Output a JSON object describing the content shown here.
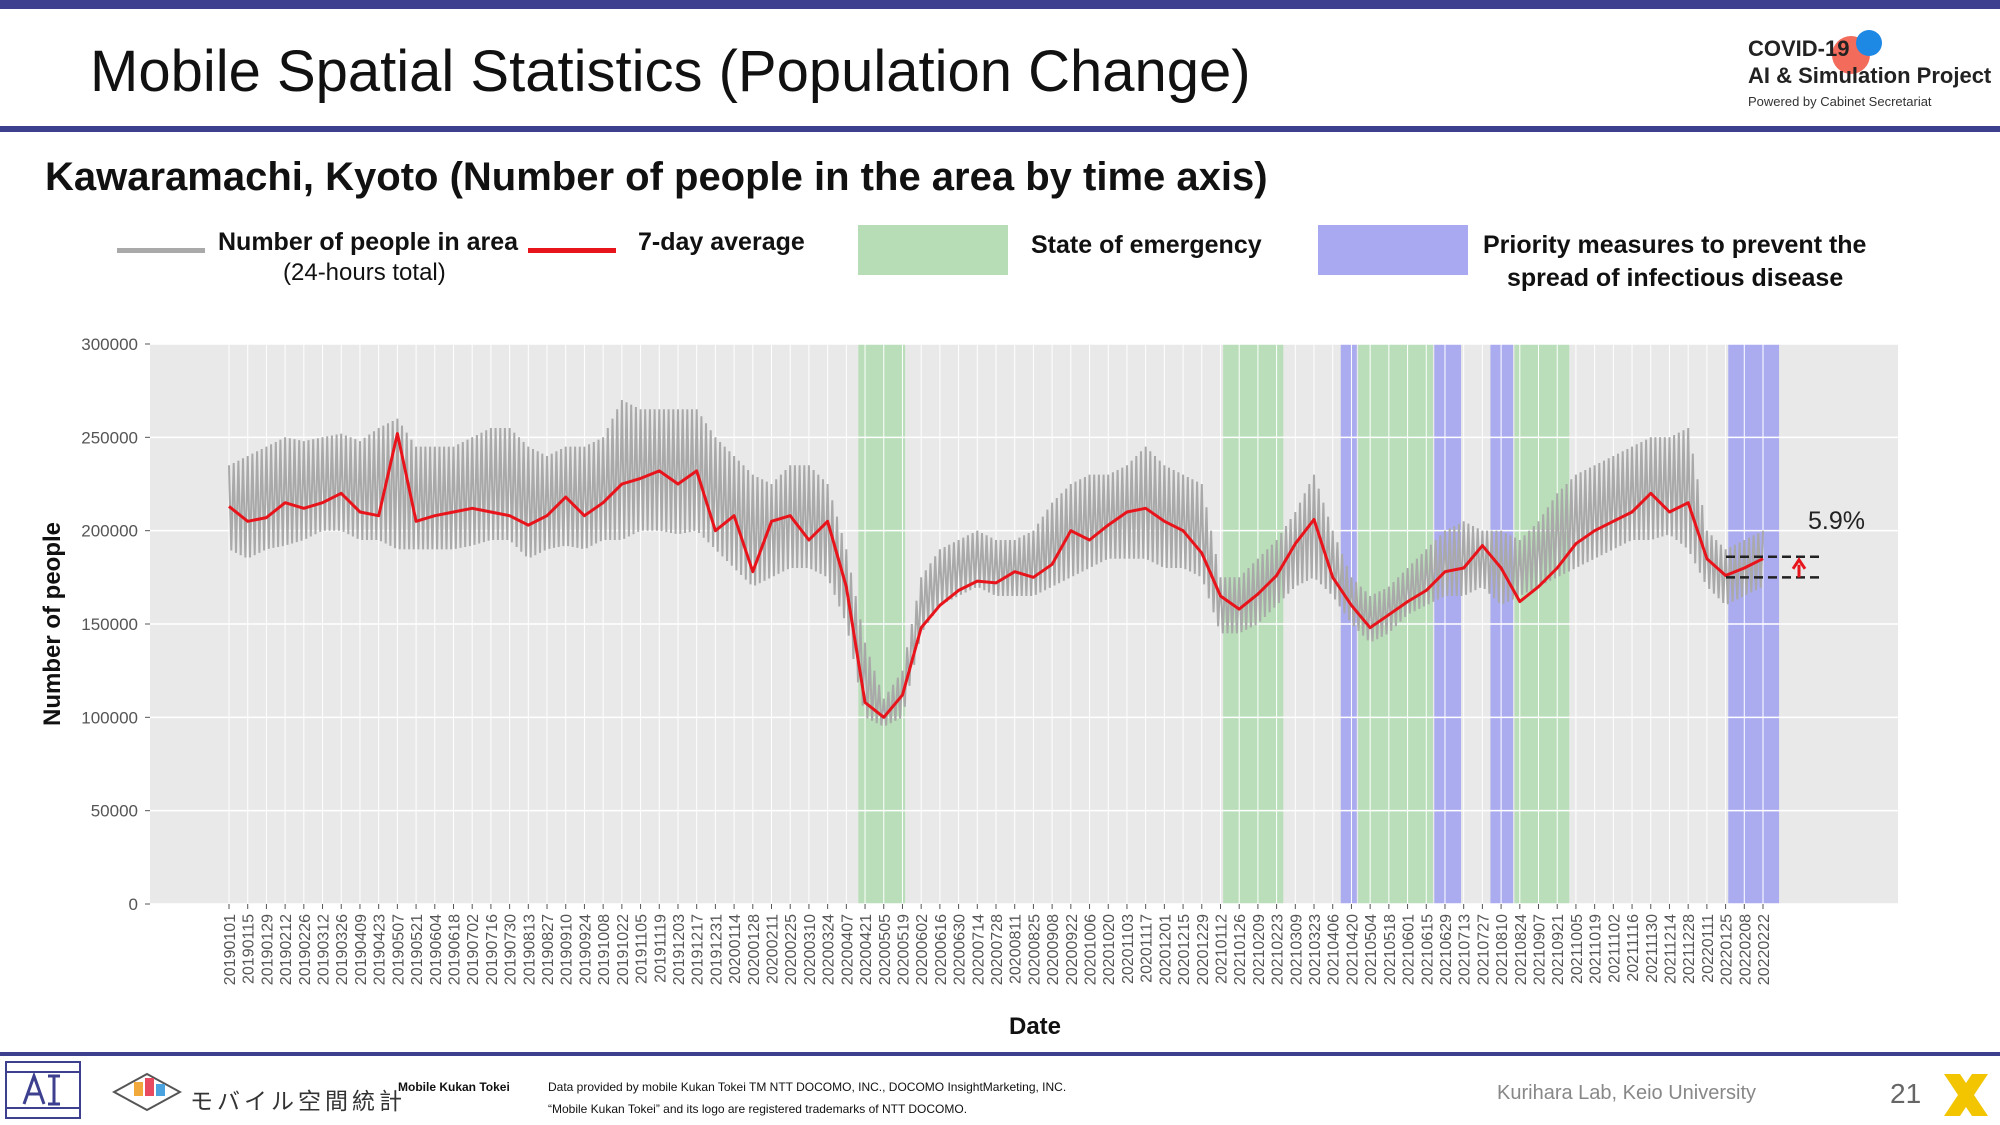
{
  "header": {
    "title": "Mobile Spatial Statistics (Population Change)",
    "logo_line1": "COVID-19",
    "logo_line2": "AI & Simulation Project",
    "logo_line3": "Powered by Cabinet Secretariat"
  },
  "subtitle": "Kawaramachi, Kyoto (Number of people in the area by time axis)",
  "legend": {
    "people": "Number of people in area",
    "people_sub": "(24-hours total)",
    "avg": "7-day average",
    "emergency": "State of emergency",
    "priority_line1": "Priority measures to prevent the",
    "priority_line2": "spread of infectious disease"
  },
  "colors": {
    "daily": "#a9a9a9",
    "average": "#e8141b",
    "emergency": "#b6ddb6",
    "priority": "#a8a9f0",
    "plot_bg": "#e9e9e9",
    "accent": "#3d3f8f"
  },
  "chart_data": {
    "type": "line",
    "xlabel": "Date",
    "ylabel": "Number of people",
    "ylim": [
      0,
      300000
    ],
    "yticks": [
      0,
      50000,
      100000,
      150000,
      200000,
      250000,
      300000
    ],
    "ytick_labels": [
      "0",
      "50000",
      "100000",
      "150000",
      "200000",
      "250000",
      "300000"
    ],
    "xtick_labels": [
      "20190101",
      "20190115",
      "20190129",
      "20190212",
      "20190226",
      "20190312",
      "20190326",
      "20190409",
      "20190423",
      "20190507",
      "20190521",
      "20190604",
      "20190618",
      "20190702",
      "20190716",
      "20190730",
      "20190813",
      "20190827",
      "20190910",
      "20190924",
      "20191008",
      "20191022",
      "20191105",
      "20191119",
      "20191203",
      "20191217",
      "20191231",
      "20200114",
      "20200128",
      "20200211",
      "20200225",
      "20200310",
      "20200324",
      "20200407",
      "20200421",
      "20200505",
      "20200519",
      "20200602",
      "20200616",
      "20200630",
      "20200714",
      "20200728",
      "20200811",
      "20200825",
      "20200908",
      "20200922",
      "20201006",
      "20201020",
      "20201103",
      "20201117",
      "20201201",
      "20201215",
      "20201229",
      "20210112",
      "20210126",
      "20210209",
      "20210223",
      "20210309",
      "20210323",
      "20210406",
      "20210420",
      "20210504",
      "20210518",
      "20210601",
      "20210615",
      "20210629",
      "20210713",
      "20210727",
      "20210810",
      "20210824",
      "20210907",
      "20210921",
      "20211005",
      "20211019",
      "20211102",
      "20211116",
      "20211130",
      "20211214",
      "20211228",
      "20220111",
      "20220125",
      "20220208",
      "20220222"
    ],
    "series": [
      {
        "name": "Number of people in area",
        "x": [
          "20190101",
          "20190115",
          "20190129",
          "20190212",
          "20190226",
          "20190312",
          "20190326",
          "20190409",
          "20190423",
          "20190507",
          "20190521",
          "20190604",
          "20190618",
          "20190702",
          "20190716",
          "20190730",
          "20190813",
          "20190827",
          "20190910",
          "20190924",
          "20191008",
          "20191022",
          "20191105",
          "20191119",
          "20191203",
          "20191217",
          "20191231",
          "20200114",
          "20200128",
          "20200211",
          "20200225",
          "20200310",
          "20200324",
          "20200407",
          "20200421",
          "20200505",
          "20200519",
          "20200602",
          "20200616",
          "20200630",
          "20200714",
          "20200728",
          "20200811",
          "20200825",
          "20200908",
          "20200922",
          "20201006",
          "20201020",
          "20201103",
          "20201117",
          "20201201",
          "20201215",
          "20201229",
          "20210112",
          "20210126",
          "20210209",
          "20210223",
          "20210309",
          "20210323",
          "20210406",
          "20210420",
          "20210504",
          "20210518",
          "20210601",
          "20210615",
          "20210629",
          "20210713",
          "20210727",
          "20210810",
          "20210824",
          "20210907",
          "20210921",
          "20211005",
          "20211019",
          "20211102",
          "20211116",
          "20211130",
          "20211214",
          "20211228",
          "20220111",
          "20220125",
          "20220208",
          "20220222"
        ],
        "y_high": [
          235000,
          240000,
          245000,
          250000,
          248000,
          250000,
          252000,
          248000,
          255000,
          260000,
          245000,
          245000,
          245000,
          250000,
          255000,
          255000,
          245000,
          240000,
          245000,
          245000,
          250000,
          270000,
          265000,
          265000,
          265000,
          265000,
          250000,
          240000,
          230000,
          225000,
          235000,
          235000,
          225000,
          190000,
          140000,
          110000,
          125000,
          175000,
          190000,
          195000,
          200000,
          195000,
          195000,
          200000,
          215000,
          225000,
          230000,
          230000,
          235000,
          245000,
          235000,
          230000,
          225000,
          175000,
          175000,
          185000,
          195000,
          210000,
          230000,
          200000,
          175000,
          165000,
          170000,
          180000,
          190000,
          200000,
          205000,
          200000,
          200000,
          195000,
          205000,
          220000,
          230000,
          235000,
          240000,
          245000,
          250000,
          250000,
          255000,
          200000,
          190000,
          195000,
          200000
        ],
        "y_low": [
          190000,
          185000,
          190000,
          192000,
          195000,
          200000,
          200000,
          195000,
          195000,
          190000,
          190000,
          190000,
          190000,
          192000,
          195000,
          195000,
          185000,
          190000,
          192000,
          190000,
          195000,
          195000,
          200000,
          200000,
          198000,
          200000,
          190000,
          180000,
          170000,
          175000,
          180000,
          180000,
          175000,
          150000,
          100000,
          95000,
          100000,
          145000,
          160000,
          165000,
          170000,
          165000,
          165000,
          165000,
          170000,
          175000,
          180000,
          185000,
          185000,
          185000,
          180000,
          180000,
          175000,
          145000,
          145000,
          150000,
          160000,
          170000,
          175000,
          165000,
          150000,
          140000,
          145000,
          155000,
          160000,
          165000,
          165000,
          170000,
          160000,
          165000,
          170000,
          175000,
          180000,
          185000,
          190000,
          195000,
          195000,
          198000,
          190000,
          170000,
          160000,
          165000,
          170000
        ]
      },
      {
        "name": "7-day average",
        "x": [
          "20190101",
          "20190115",
          "20190129",
          "20190212",
          "20190226",
          "20190312",
          "20190326",
          "20190409",
          "20190423",
          "20190507",
          "20190521",
          "20190604",
          "20190618",
          "20190702",
          "20190716",
          "20190730",
          "20190813",
          "20190827",
          "20190910",
          "20190924",
          "20191008",
          "20191022",
          "20191105",
          "20191119",
          "20191203",
          "20191217",
          "20191231",
          "20200114",
          "20200128",
          "20200211",
          "20200225",
          "20200310",
          "20200324",
          "20200407",
          "20200421",
          "20200505",
          "20200519",
          "20200602",
          "20200616",
          "20200630",
          "20200714",
          "20200728",
          "20200811",
          "20200825",
          "20200908",
          "20200922",
          "20201006",
          "20201020",
          "20201103",
          "20201117",
          "20201201",
          "20201215",
          "20201229",
          "20210112",
          "20210126",
          "20210209",
          "20210223",
          "20210309",
          "20210323",
          "20210406",
          "20210420",
          "20210504",
          "20210518",
          "20210601",
          "20210615",
          "20210629",
          "20210713",
          "20210727",
          "20210810",
          "20210824",
          "20210907",
          "20210921",
          "20211005",
          "20211019",
          "20211102",
          "20211116",
          "20211130",
          "20211214",
          "20211228",
          "20220111",
          "20220125",
          "20220208",
          "20220222"
        ],
        "y": [
          213000,
          205000,
          207000,
          215000,
          212000,
          215000,
          220000,
          210000,
          208000,
          252000,
          205000,
          208000,
          210000,
          212000,
          210000,
          208000,
          203000,
          208000,
          218000,
          208000,
          215000,
          225000,
          228000,
          232000,
          225000,
          232000,
          200000,
          208000,
          178000,
          205000,
          208000,
          195000,
          205000,
          170000,
          108000,
          100000,
          112000,
          148000,
          160000,
          168000,
          173000,
          172000,
          178000,
          175000,
          182000,
          200000,
          195000,
          203000,
          210000,
          212000,
          205000,
          200000,
          188000,
          165000,
          158000,
          166000,
          176000,
          193000,
          206000,
          175000,
          160000,
          148000,
          155000,
          162000,
          168000,
          178000,
          180000,
          192000,
          180000,
          162000,
          170000,
          180000,
          193000,
          200000,
          205000,
          210000,
          220000,
          210000,
          215000,
          185000,
          176000,
          180000,
          185000
        ]
      }
    ],
    "shaded_periods": [
      {
        "type": "State of emergency",
        "start": "20200416",
        "end": "20200521"
      },
      {
        "type": "State of emergency",
        "start": "20210114",
        "end": "20210228"
      },
      {
        "type": "Priority measures to prevent the spread of infectious disease",
        "start": "20210412",
        "end": "20210424"
      },
      {
        "type": "State of emergency",
        "start": "20210425",
        "end": "20210620"
      },
      {
        "type": "Priority measures to prevent the spread of infectious disease",
        "start": "20210621",
        "end": "20210711"
      },
      {
        "type": "Priority measures to prevent the spread of infectious disease",
        "start": "20210802",
        "end": "20210819"
      },
      {
        "type": "State of emergency",
        "start": "20210820",
        "end": "20210930"
      },
      {
        "type": "Priority measures to prevent the spread of infectious disease",
        "start": "20220127",
        "end": "20220306"
      }
    ],
    "annotation": {
      "text": "5.9%",
      "upper": 186000,
      "lower": 175000
    }
  },
  "footer": {
    "kukan_jp": "モバイル空間統計",
    "kukan_en": "Mobile Kukan Tokei",
    "credit1": "Data provided by mobile Kukan Tokei TM NTT DOCOMO, INC., DOCOMO InsightMarketing, INC.",
    "credit2": "“Mobile Kukan Tokei” and its logo are registered trademarks of NTT DOCOMO.",
    "lab": "Kurihara Lab, Keio University",
    "page": "21"
  }
}
